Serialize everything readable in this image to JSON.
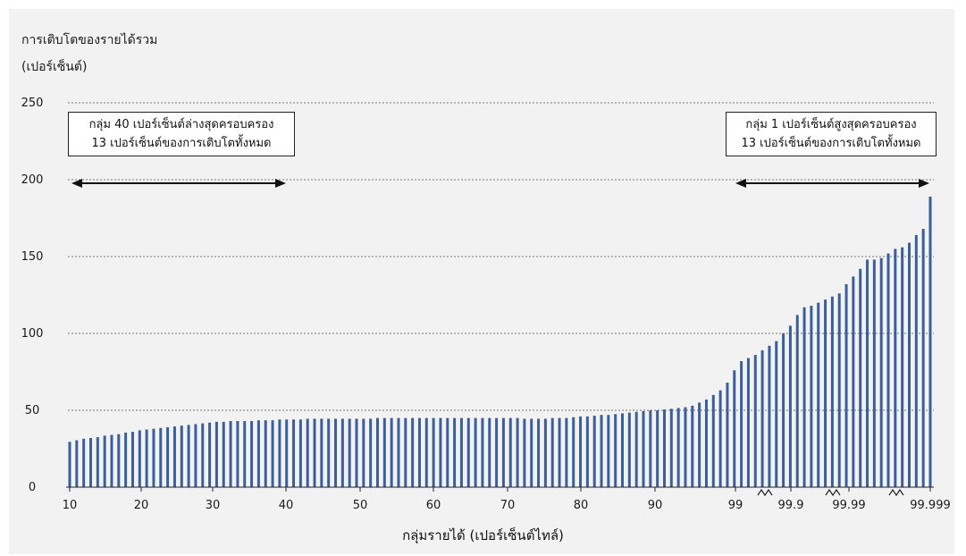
{
  "chart_data": {
    "type": "bar",
    "title": "",
    "ylabel_line1": "การเติบโตของรายได้รวม",
    "ylabel_line2": "(เปอร์เซ็นต์)",
    "xlabel": "กลุ่มรายได้ (เปอร์เซ็นต์ไทล์)",
    "ylim": [
      0,
      250
    ],
    "yticks": [
      0,
      50,
      100,
      150,
      200,
      250
    ],
    "xticks": [
      "10",
      "20",
      "30",
      "40",
      "50",
      "60",
      "70",
      "80",
      "90",
      "99",
      "99.9",
      "99.99",
      "99.999"
    ],
    "grid": "horizontal-dotted",
    "bar_color": "#3b5f9a",
    "values": [
      29.5,
      30.5,
      31.5,
      32,
      32.5,
      33.5,
      34,
      34.5,
      35.5,
      36,
      37,
      37.5,
      38,
      38.5,
      39,
      39.5,
      40,
      40.5,
      41,
      41.5,
      42,
      42.5,
      42.5,
      43,
      43,
      43,
      43,
      43.5,
      43.5,
      43.5,
      44,
      44,
      44,
      44,
      44.5,
      44.5,
      44.5,
      44.5,
      44.5,
      44.5,
      44.5,
      44.5,
      44.5,
      44.5,
      45,
      45,
      45,
      45,
      45,
      45,
      45,
      45,
      45,
      45,
      45,
      45,
      45,
      45,
      45,
      45,
      45,
      45,
      45,
      45,
      45,
      44.5,
      44.5,
      44.5,
      44.5,
      45,
      45,
      45,
      45.5,
      46,
      46,
      46.5,
      47,
      47,
      47.5,
      48,
      48.5,
      49,
      49.5,
      50,
      50,
      50.5,
      51,
      51.5,
      52,
      53,
      55,
      57,
      60,
      63,
      68,
      76,
      82,
      84,
      86,
      89,
      92,
      95,
      100,
      105,
      112,
      117,
      118,
      120,
      122,
      124,
      126,
      132,
      137,
      142,
      148,
      148,
      149,
      152,
      155,
      156,
      159,
      164,
      168,
      189
    ],
    "annotations": [
      {
        "line1": "กลุ่ม 40 เปอร์เซ็นต์ล่างสุดครอบครอง",
        "line2": "13 เปอร์เซ็นต์ของการเติบโตทั้งหมด"
      },
      {
        "line1": "กลุ่ม 1 เปอร์เซ็นต์สูงสุดครอบครอง",
        "line2": "13 เปอร์เซ็นต์ของการเติบโตทั้งหมด"
      }
    ]
  }
}
